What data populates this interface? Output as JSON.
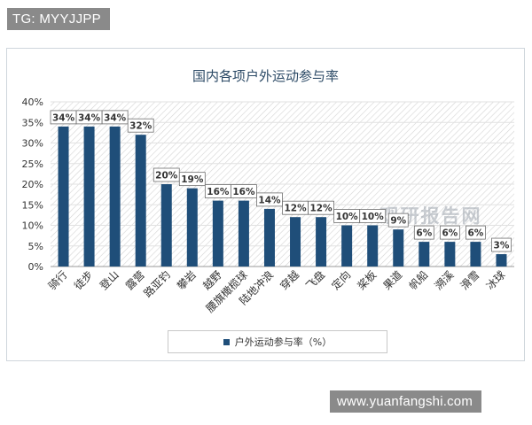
{
  "overlay_tag": "TG: MYYJJPP",
  "footer_url": "www.yuanfangshi.com",
  "colors": {
    "bar": "#1f4e79",
    "axis_text": "#333333",
    "title": "#2c4a66"
  },
  "chart_data": {
    "type": "bar",
    "title": "国内各项户外运动参与率",
    "categories": [
      "骑行",
      "徒步",
      "登山",
      "露营",
      "路亚钓",
      "攀岩",
      "越野",
      "腰旗橄榄球",
      "陆地冲浪",
      "穿越",
      "飞盘",
      "定向",
      "桨板",
      "果道",
      "帆船",
      "溯溪",
      "滑雪",
      "冰球"
    ],
    "series": [
      {
        "name": "户外运动参与率（%）",
        "values": [
          34,
          34,
          34,
          32,
          20,
          19,
          16,
          16,
          14,
          12,
          12,
          10,
          10,
          9,
          6,
          6,
          6,
          3
        ]
      }
    ],
    "data_labels": [
      "34%",
      "34%",
      "34%",
      "32%",
      "20%",
      "19%",
      "16%",
      "16%",
      "14%",
      "12%",
      "12%",
      "10%",
      "10%",
      "9%",
      "6%",
      "6%",
      "6%",
      "3%"
    ],
    "y_ticks": [
      "0%",
      "5%",
      "10%",
      "15%",
      "20%",
      "25%",
      "30%",
      "35%",
      "40%"
    ],
    "ylim": [
      0,
      40
    ],
    "legend_position": "bottom",
    "watermark": "观研报告网"
  }
}
